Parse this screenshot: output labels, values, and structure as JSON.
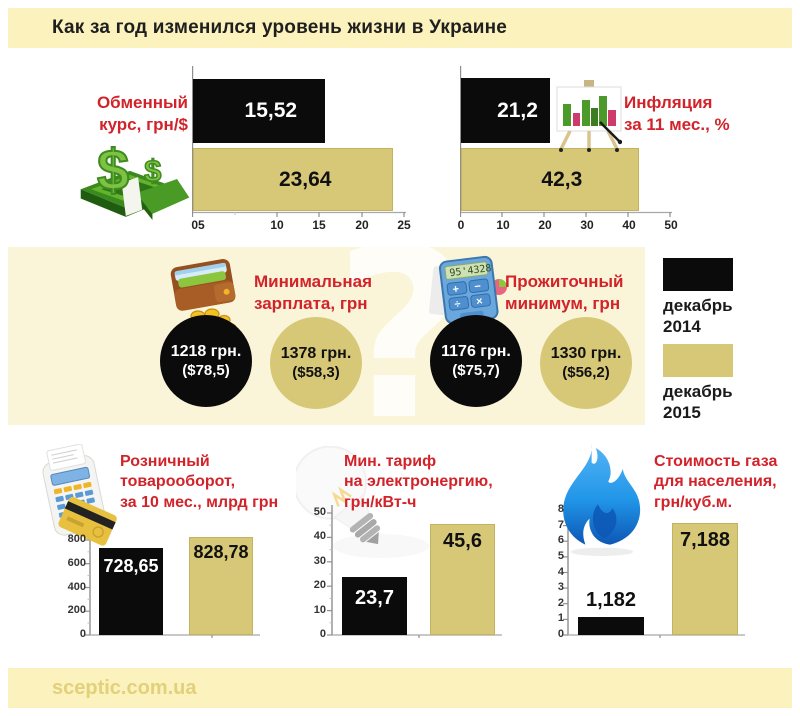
{
  "header": {
    "title": "Как за год изменился уровень жизни в Украине"
  },
  "footer": {
    "site": "sceptic.com.ua"
  },
  "watermark": "?",
  "colors": {
    "black_series": "#0b0b0b",
    "khaki_series": "#d7c878",
    "accent_red": "#d2232a",
    "band_yellow": "#fbf2bd",
    "band_light": "#faf5d8",
    "footer_text": "#e2d07b"
  },
  "legend": {
    "items": [
      {
        "swatch_color": "#0b0b0b",
        "label_lines": [
          "декабрь",
          "2014"
        ],
        "label": "декабрь 2014"
      },
      {
        "swatch_color": "#d7c878",
        "label_lines": [
          "декабрь",
          "2015"
        ],
        "label": "декабрь 2015"
      }
    ]
  },
  "chart_data": [
    {
      "id": "exchange_rate",
      "type": "bar",
      "orientation": "horizontal",
      "title": "Обменный курс, грн/$",
      "title_lines": [
        "Обменный",
        "курс, грн/$"
      ],
      "categories": [
        "декабрь 2014",
        "декабрь 2015"
      ],
      "values": [
        15.52,
        23.64
      ],
      "labels": [
        "15,52",
        "23,64"
      ],
      "xlim": [
        0,
        25
      ],
      "scale_max": 25,
      "ticks": [
        "05",
        "10",
        "15",
        "20",
        "25"
      ],
      "icon": "money-icon"
    },
    {
      "id": "inflation_11m",
      "type": "bar",
      "orientation": "horizontal",
      "title": "Инфляция за 11 мес., %",
      "title_lines": [
        "Инфляция",
        "за 11 мес., %"
      ],
      "categories": [
        "декабрь 2014",
        "декабрь 2015"
      ],
      "values": [
        21.2,
        42.3
      ],
      "labels": [
        "21,2",
        "42,3"
      ],
      "xlim": [
        0,
        50
      ],
      "scale_max": 50,
      "ticks": [
        "0",
        "10",
        "20",
        "30",
        "40",
        "50"
      ],
      "icon": "chart-easel-icon"
    },
    {
      "id": "min_salary",
      "type": "circle-comparison",
      "title": "Минимальная зарплата, грн",
      "title_lines": [
        "Минимальная",
        "зарплата, грн"
      ],
      "categories": [
        "декабрь 2014",
        "декабрь 2015"
      ],
      "values": [
        1218,
        1378
      ],
      "labels": [
        "1218 грн.",
        "1378 грн."
      ],
      "sublabels": [
        "($78,5)",
        "($58,3)"
      ],
      "icon": "wallet-icon"
    },
    {
      "id": "subsistence_minimum",
      "type": "circle-comparison",
      "title": "Прожиточный минимум, грн",
      "title_lines": [
        "Прожиточный",
        "минимум, грн"
      ],
      "categories": [
        "декабрь 2014",
        "декабрь 2015"
      ],
      "values": [
        1176,
        1330
      ],
      "labels": [
        "1176 грн.",
        "1330 грн."
      ],
      "sublabels": [
        "($75,7)",
        "($56,2)"
      ],
      "icon": "calculator-icon"
    },
    {
      "id": "retail_turnover",
      "type": "bar",
      "orientation": "vertical",
      "title": "Розничный товарооборот, за 10 мес., млрд грн",
      "title_lines": [
        "Розничный",
        "товарооборот,",
        "за 10 мес., млрд грн"
      ],
      "categories": [
        "декабрь 2014",
        "декабрь 2015"
      ],
      "values": [
        728.65,
        828.78
      ],
      "labels": [
        "728,65",
        "828,78"
      ],
      "ylim": [
        0,
        800
      ],
      "scale_max": 850,
      "ticks": [
        "800",
        "600",
        "400",
        "200",
        "0"
      ],
      "icon": "pos-terminal-icon"
    },
    {
      "id": "electricity_tariff",
      "type": "bar",
      "orientation": "vertical",
      "title": "Мин. тариф на электронергию, грн/кВт-ч",
      "title_lines": [
        "Мин. тариф",
        "на электронергию,",
        "грн/кВт-ч"
      ],
      "categories": [
        "декабрь 2014",
        "декабрь 2015"
      ],
      "values": [
        23.7,
        45.6
      ],
      "labels": [
        "23,7",
        "45,6"
      ],
      "ylim": [
        0,
        50
      ],
      "scale_max": 50,
      "ticks": [
        "50",
        "40",
        "30",
        "20",
        "10",
        "0"
      ],
      "icon": "light-bulb-icon"
    },
    {
      "id": "gas_price",
      "type": "bar",
      "orientation": "vertical",
      "title": "Стоимость газа для населения, грн/куб.м.",
      "title_lines": [
        "Стоимость газа",
        "для населения,",
        "грн/куб.м."
      ],
      "categories": [
        "декабрь 2014",
        "декабрь 2015"
      ],
      "values": [
        1.182,
        7.188
      ],
      "labels": [
        "1,182",
        "7,188"
      ],
      "ylim": [
        0,
        8
      ],
      "scale_max": 8,
      "ticks": [
        "8",
        "7",
        "6",
        "5",
        "4",
        "3",
        "2",
        "1",
        "0"
      ],
      "icon": "gas-flame-icon"
    }
  ]
}
